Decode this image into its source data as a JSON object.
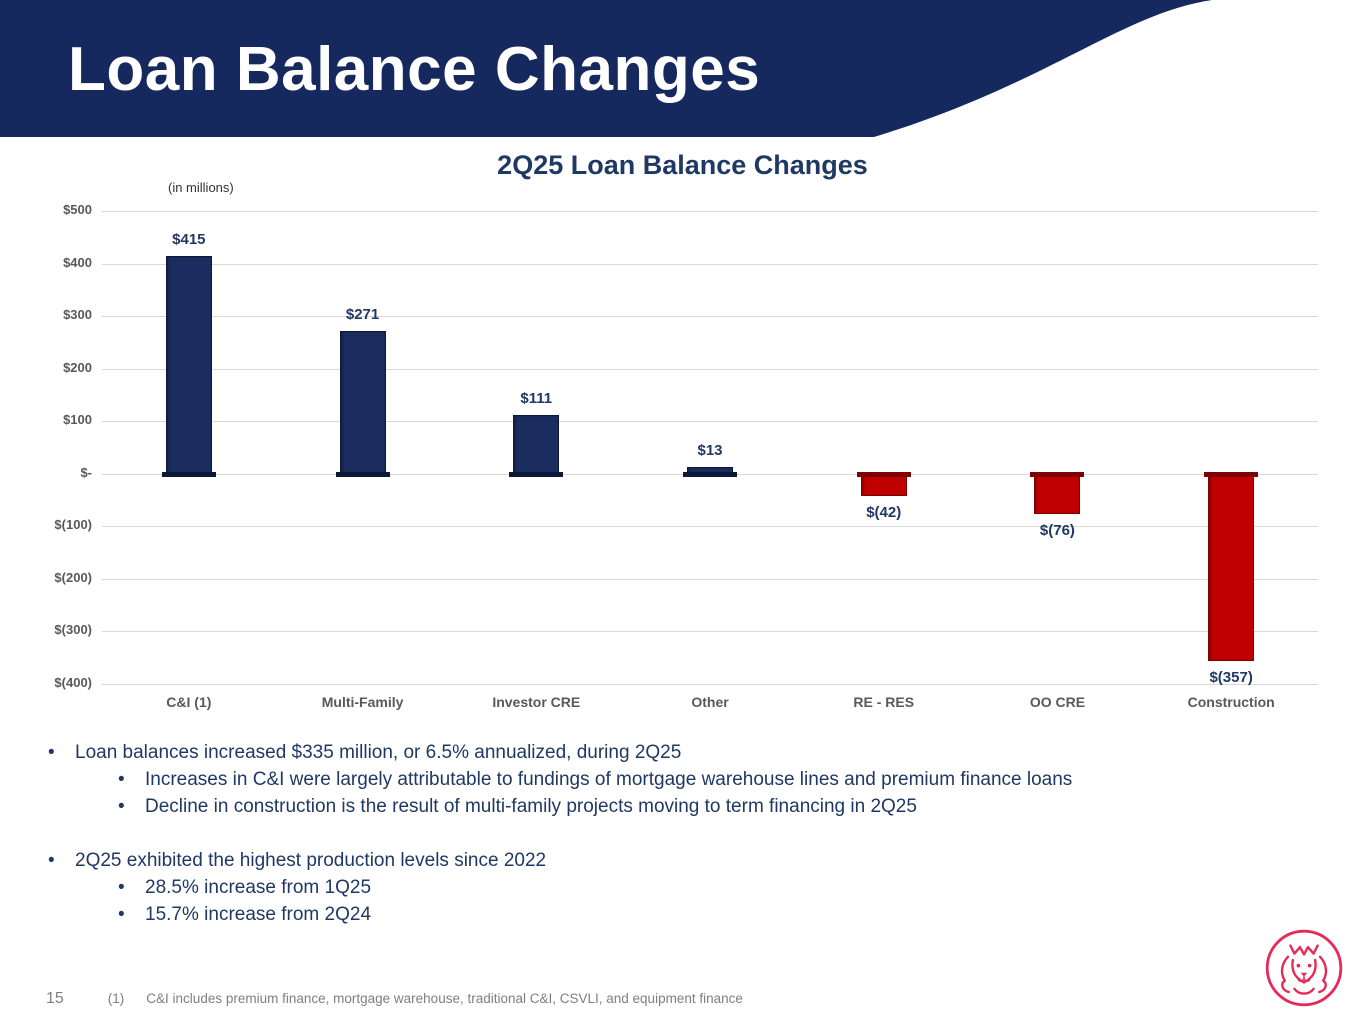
{
  "header": {
    "title": "Loan Balance Changes"
  },
  "chart": {
    "title": "2Q25 Loan Balance Changes",
    "units_note": "(in millions)",
    "y_ticks": [
      "$500",
      "$400",
      "$300",
      "$200",
      "$100",
      "$-",
      "$(100)",
      "$(200)",
      "$(300)",
      "$(400)"
    ]
  },
  "chart_data": {
    "type": "bar",
    "title": "2Q25 Loan Balance Changes",
    "units": "in millions",
    "categories": [
      "C&I (1)",
      "Multi-Family",
      "Investor CRE",
      "Other",
      "RE - RES",
      "OO CRE",
      "Construction"
    ],
    "values": [
      415,
      271,
      111,
      13,
      -42,
      -76,
      -357
    ],
    "labels": [
      "$415",
      "$271",
      "$111",
      "$13",
      "$(42)",
      "$(76)",
      "$(357)"
    ],
    "ylim": [
      -400,
      500
    ],
    "y_tick_step": 100,
    "grid": true,
    "legend": "none",
    "positive_color": "#1b2d5f",
    "negative_color": "#c00000"
  },
  "bullet_marker": "•",
  "bullets": [
    {
      "text": "Loan balances increased $335 million, or 6.5% annualized, during 2Q25",
      "sub": [
        "Increases in C&I were largely attributable to fundings of mortgage warehouse lines and premium finance loans",
        "Decline in construction is the result of multi-family projects moving to term financing in 2Q25"
      ]
    },
    {
      "text": "2Q25 exhibited the highest production levels since 2022",
      "sub": [
        "28.5% increase from 1Q25",
        "15.7% increase from 2Q24"
      ]
    }
  ],
  "footer": {
    "page_number": "15",
    "footnote_marker": "(1)",
    "footnote_text": "C&I includes premium finance, mortgage warehouse, traditional C&I, CSVLI, and equipment finance"
  },
  "colors": {
    "header_navy": "#16295f",
    "text_navy": "#1f3864",
    "bar_positive": "#1b2d5f",
    "bar_negative": "#c00000",
    "gridline": "#d9d9d9",
    "axis_text": "#595959",
    "footnote_gray": "#7f7f7f",
    "logo_pink": "#e62a58"
  }
}
